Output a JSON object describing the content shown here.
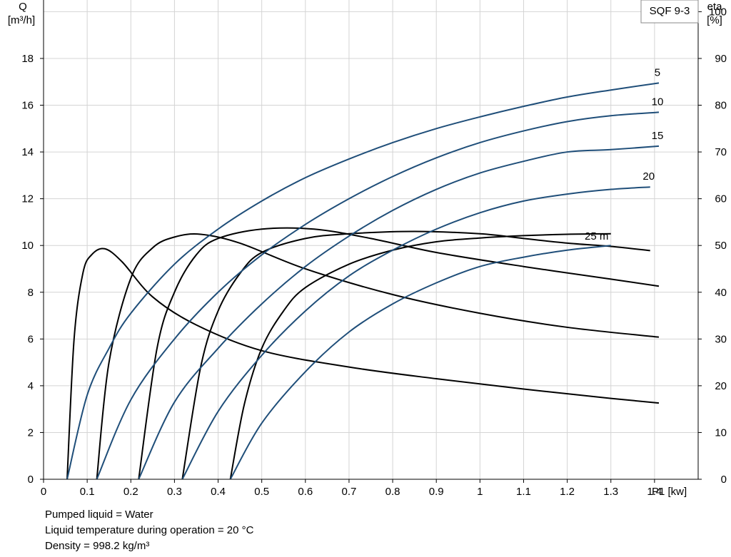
{
  "notes": [
    "Pumped liquid = Water",
    "Liquid temperature during operation = 20 °C",
    "Density = 998.2 kg/m³"
  ],
  "chart_data": {
    "type": "line",
    "model_label": "SQF 9-3",
    "x_axis": {
      "label": "P1 [kw]",
      "range": [
        0,
        1.5
      ],
      "ticks": [
        0,
        0.1,
        0.2,
        0.3,
        0.4,
        0.5,
        0.6,
        0.7,
        0.8,
        0.9,
        1.0,
        1.1,
        1.2,
        1.3,
        1.4
      ]
    },
    "y_axis_left": {
      "label_line1": "Q",
      "label_line2": "[m³/h]",
      "range": [
        0,
        20.5
      ],
      "ticks": [
        0,
        2,
        4,
        6,
        8,
        10,
        12,
        14,
        16,
        18
      ]
    },
    "y_axis_right": {
      "label_line1": "eta",
      "label_line2": "[%]",
      "range": [
        0,
        102.5
      ],
      "ticks": [
        0,
        10,
        20,
        30,
        40,
        50,
        60,
        70,
        80,
        90,
        100
      ]
    },
    "grid": true,
    "colors": {
      "flow": "#1f4e79",
      "efficiency": "#000000",
      "grid": "#d4d4d4"
    },
    "flow_series": [
      {
        "label": "5",
        "x": [
          0.054,
          0.1,
          0.15,
          0.2,
          0.3,
          0.4,
          0.5,
          0.6,
          0.7,
          0.8,
          0.9,
          1.0,
          1.1,
          1.2,
          1.3,
          1.41
        ],
        "y": [
          0,
          3.6,
          5.6,
          7.1,
          9.2,
          10.7,
          11.9,
          12.9,
          13.7,
          14.4,
          15.0,
          15.5,
          15.95,
          16.35,
          16.65,
          16.95
        ]
      },
      {
        "label": "10",
        "x": [
          0.122,
          0.2,
          0.3,
          0.4,
          0.5,
          0.6,
          0.7,
          0.8,
          0.9,
          1.0,
          1.1,
          1.2,
          1.3,
          1.41
        ],
        "y": [
          0,
          3.4,
          6.0,
          8.0,
          9.6,
          10.9,
          12.0,
          12.95,
          13.75,
          14.4,
          14.9,
          15.3,
          15.55,
          15.7
        ]
      },
      {
        "label": "15",
        "x": [
          0.218,
          0.3,
          0.4,
          0.5,
          0.6,
          0.7,
          0.8,
          0.9,
          1.0,
          1.1,
          1.2,
          1.3,
          1.41
        ],
        "y": [
          0,
          3.3,
          5.6,
          7.5,
          9.1,
          10.4,
          11.5,
          12.4,
          13.1,
          13.6,
          14.0,
          14.1,
          14.25
        ]
      },
      {
        "label": "20",
        "x": [
          0.318,
          0.4,
          0.5,
          0.6,
          0.7,
          0.8,
          0.9,
          1.0,
          1.1,
          1.2,
          1.3,
          1.39
        ],
        "y": [
          0,
          2.9,
          5.3,
          7.2,
          8.7,
          9.8,
          10.7,
          11.4,
          11.9,
          12.2,
          12.4,
          12.5
        ]
      },
      {
        "label": "25 m",
        "x": [
          0.428,
          0.5,
          0.6,
          0.7,
          0.8,
          0.9,
          1.0,
          1.1,
          1.2,
          1.3
        ],
        "y": [
          0,
          2.4,
          4.6,
          6.3,
          7.5,
          8.4,
          9.1,
          9.5,
          9.8,
          10.0
        ]
      }
    ],
    "efficiency_series": [
      {
        "x": [
          0.054,
          0.07,
          0.09,
          0.11,
          0.14,
          0.18,
          0.25,
          0.35,
          0.5,
          0.7,
          0.9,
          1.1,
          1.3,
          1.41
        ],
        "y": [
          0,
          30,
          44,
          48,
          49.3,
          46.5,
          39,
          33,
          27.5,
          24,
          21.5,
          19.3,
          17.3,
          16.3
        ]
      },
      {
        "x": [
          0.122,
          0.15,
          0.2,
          0.25,
          0.3,
          0.36,
          0.45,
          0.6,
          0.8,
          1.0,
          1.2,
          1.41
        ],
        "y": [
          0,
          25,
          43,
          49.5,
          51.8,
          52.4,
          50.5,
          45,
          39.5,
          35.5,
          32.5,
          30.4
        ]
      },
      {
        "x": [
          0.218,
          0.26,
          0.3,
          0.35,
          0.4,
          0.5,
          0.62,
          0.75,
          0.9,
          1.1,
          1.3,
          1.41
        ],
        "y": [
          0,
          28,
          40,
          48,
          51.5,
          53.5,
          53.5,
          51.5,
          48.5,
          45.5,
          42.8,
          41.3
        ]
      },
      {
        "x": [
          0.318,
          0.36,
          0.4,
          0.45,
          0.5,
          0.6,
          0.7,
          0.85,
          1.0,
          1.1,
          1.2,
          1.3,
          1.39
        ],
        "y": [
          0,
          24,
          36,
          44,
          48.5,
          51.5,
          52.5,
          53,
          52.5,
          51.5,
          50.5,
          49.8,
          48.9
        ]
      },
      {
        "x": [
          0.428,
          0.46,
          0.5,
          0.55,
          0.6,
          0.7,
          0.8,
          0.9,
          1.0,
          1.1,
          1.2,
          1.3
        ],
        "y": [
          0,
          16,
          28,
          36,
          41,
          46,
          49,
          50.8,
          51.6,
          52.1,
          52.4,
          52.5
        ]
      }
    ]
  }
}
